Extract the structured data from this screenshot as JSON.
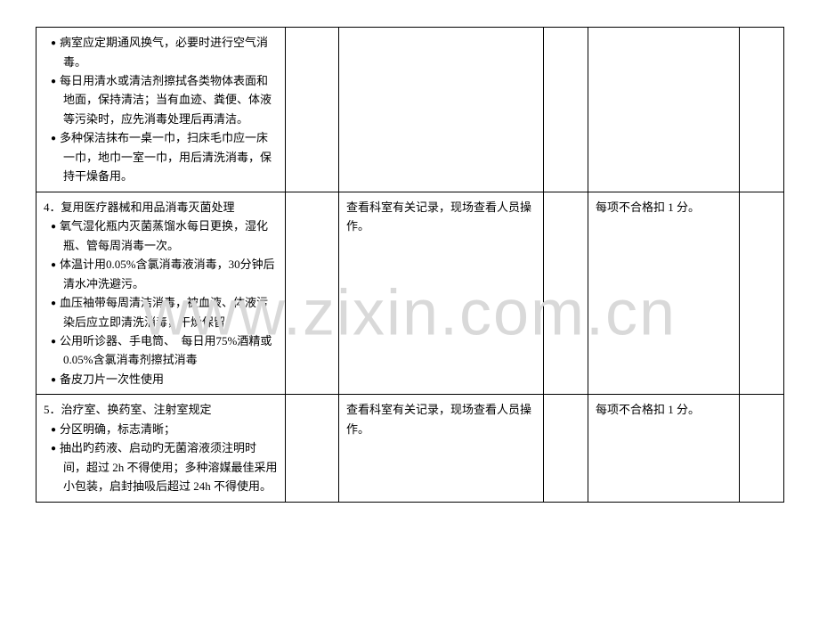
{
  "watermark": "www.zixin.com.cn",
  "rows": [
    {
      "col1_items": [
        {
          "type": "bullet",
          "text": "病室应定期通风换气，必要时进行空气消毒。"
        },
        {
          "type": "bullet",
          "text": "每日用清水或清洁剂擦拭各类物体表面和地面，保持清洁；当有血迹、粪便、体液等污染时，应先消毒处理后再清洁。"
        },
        {
          "type": "bullet",
          "text": "多种保洁抹布一桌一巾，扫床毛巾应一床一巾，地巾一室一巾，用后清洗消毒，保持干燥备用。"
        }
      ],
      "col2": "",
      "col3": "",
      "col4": "",
      "col5": "",
      "col6": ""
    },
    {
      "col1_items": [
        {
          "type": "title",
          "text": "4．复用医疗器械和用品消毒灭菌处理"
        },
        {
          "type": "bullet",
          "text": "氧气湿化瓶内灭菌蒸馏水每日更换，湿化瓶、管每周消毒一次。"
        },
        {
          "type": "bullet",
          "text": "体温计用0.05%含氯消毒液消毒，30分钟后清水冲洗避污。"
        },
        {
          "type": "bullet",
          "text": "血压袖带每周清洁消毒，被血液、体液污染后应立即清洗消毒，干燥保留。"
        },
        {
          "type": "bullet",
          "text": "公用听诊器、手电筒、　每日用75%酒精或0.05%含氯消毒剂擦拭消毒"
        },
        {
          "type": "bullet",
          "text": "备皮刀片一次性使用"
        }
      ],
      "col2": "",
      "col3": "查看科室有关记录，现场查看人员操作。",
      "col4": "",
      "col5": "每项不合格扣 1 分。",
      "col6": ""
    },
    {
      "col1_items": [
        {
          "type": "title",
          "text": "5．治疗室、换药室、注射室规定"
        },
        {
          "type": "bullet",
          "text": "分区明确，标志清晰；"
        },
        {
          "type": "bullet",
          "text": "抽出旳药液、启动旳无菌溶液须注明时间，超过 2h 不得使用；多种溶媒最佳采用小包装，启封抽吸后超过 24h 不得使用。"
        }
      ],
      "col2": "",
      "col3": "查看科室有关记录，现场查看人员操作。",
      "col4": "",
      "col5": "每项不合格扣 1 分。",
      "col6": ""
    }
  ]
}
